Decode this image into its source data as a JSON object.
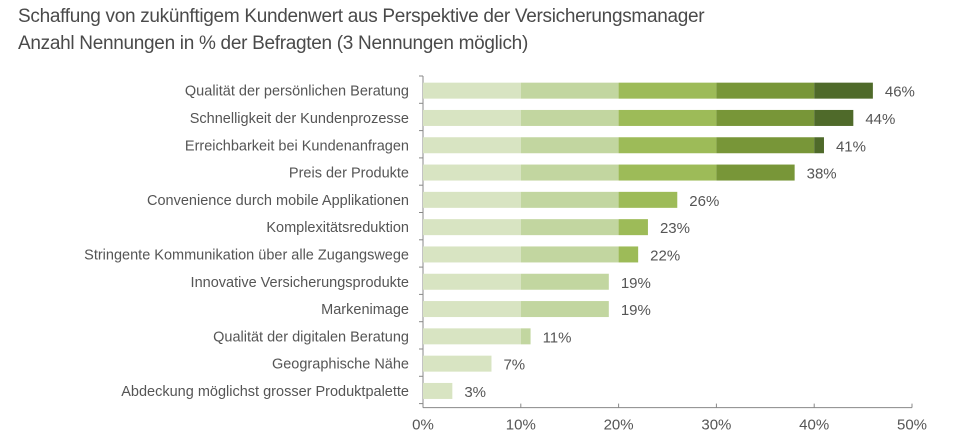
{
  "chart_data": {
    "type": "bar",
    "orientation": "horizontal",
    "stacked_color_bands": true,
    "title": "Schaffung von zukünftigem Kundenwert aus Perspektive der Versicherungsmanager",
    "subtitle": "Anzahl Nennungen in % der Befragten (3 Nennungen möglich)",
    "xlabel": "",
    "ylabel": "",
    "xlim": [
      0,
      50
    ],
    "x_ticks": [
      "0%",
      "10%",
      "20%",
      "30%",
      "40%",
      "50%"
    ],
    "x_tick_values": [
      0,
      10,
      20,
      30,
      40,
      50
    ],
    "grid": false,
    "legend": "none",
    "categories": [
      "Qualität der persönlichen Beratung",
      "Schnelligkeit der Kundenprozesse",
      "Erreichbarkeit bei Kundenanfragen",
      "Preis der Produkte",
      "Convenience durch mobile Applikationen",
      "Komplexitätsreduktion",
      "Stringente Kommunikation über alle Zugangswege",
      "Innovative Versicherungsprodukte",
      "Markenimage",
      "Qualität der digitalen Beratung",
      "Geographische Nähe",
      "Abdeckung möglichst grosser Produktpalette"
    ],
    "values": [
      46,
      44,
      41,
      38,
      26,
      23,
      22,
      19,
      19,
      11,
      7,
      3
    ],
    "value_labels": [
      "46%",
      "44%",
      "41%",
      "38%",
      "26%",
      "23%",
      "22%",
      "19%",
      "19%",
      "11%",
      "7%",
      "3%"
    ],
    "band_colors": [
      "#d8e4c2",
      "#c2d6a0",
      "#9dbb58",
      "#789638",
      "#4f6a2a"
    ]
  }
}
